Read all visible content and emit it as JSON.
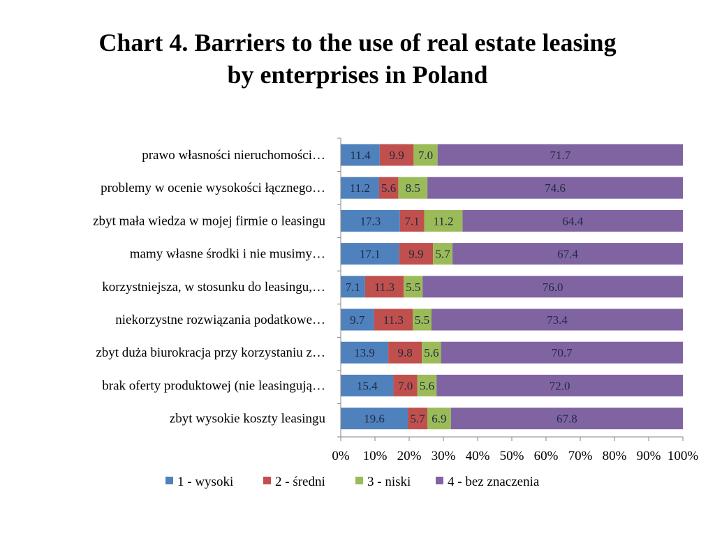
{
  "chart_data": {
    "type": "bar",
    "orientation": "horizontal",
    "stacked": "percent",
    "title_lines": [
      "Chart 4. Barriers to the use of real estate leasing",
      "by enterprises in Poland"
    ],
    "categories": [
      "prawo własności nieruchomości…",
      "problemy w ocenie wysokości łącznego…",
      "zbyt mała wiedza w mojej firmie o leasingu",
      "mamy własne środki i nie musimy…",
      "korzystniejsza, w stosunku do leasingu,…",
      "niekorzystne rozwiązania podatkowe…",
      "zbyt duża biurokracja przy korzystaniu z…",
      "brak oferty produktowej (nie leasingują…",
      "zbyt wysokie koszty leasingu"
    ],
    "series": [
      {
        "name": "1 - wysoki",
        "color": "#4f81bd",
        "values": [
          11.4,
          11.2,
          17.3,
          17.1,
          7.1,
          9.7,
          13.9,
          15.4,
          19.6
        ],
        "labels": [
          "11.4",
          "11.2",
          "17.3",
          "17.1",
          "7.1",
          "9.7",
          "13.9",
          "15.4",
          "19.6"
        ]
      },
      {
        "name": "2 - średni",
        "color": "#c0504d",
        "values": [
          9.9,
          5.6,
          7.1,
          9.9,
          11.3,
          11.3,
          9.8,
          7.0,
          5.7
        ],
        "labels": [
          "9.9",
          "5.6",
          "7.1",
          "9.9",
          "11.3",
          "11.3",
          "9.8",
          "7.0",
          "5.7"
        ]
      },
      {
        "name": "3 - niski",
        "color": "#9bbb59",
        "values": [
          7.0,
          8.5,
          11.2,
          5.7,
          5.5,
          5.5,
          5.6,
          5.6,
          6.9
        ],
        "labels": [
          "7.0",
          "8.5",
          "11.2",
          "5.7",
          "5.5",
          "5.5",
          "5.6",
          "5.6",
          "6.9"
        ]
      },
      {
        "name": "4 - bez znaczenia",
        "color": "#8064a2",
        "values": [
          71.7,
          74.6,
          64.4,
          67.4,
          76.0,
          73.4,
          70.7,
          72.0,
          67.8
        ],
        "labels": [
          "71.7",
          "74.6",
          "64.4",
          "67.4",
          "76.0",
          "73.4",
          "70.7",
          "72.0",
          "67.8"
        ]
      }
    ],
    "xlim": [
      0,
      100
    ],
    "x_ticks": [
      "0%",
      "10%",
      "20%",
      "30%",
      "40%",
      "50%",
      "60%",
      "70%",
      "80%",
      "90%",
      "100%"
    ],
    "grid": false,
    "legend_position": "bottom"
  }
}
